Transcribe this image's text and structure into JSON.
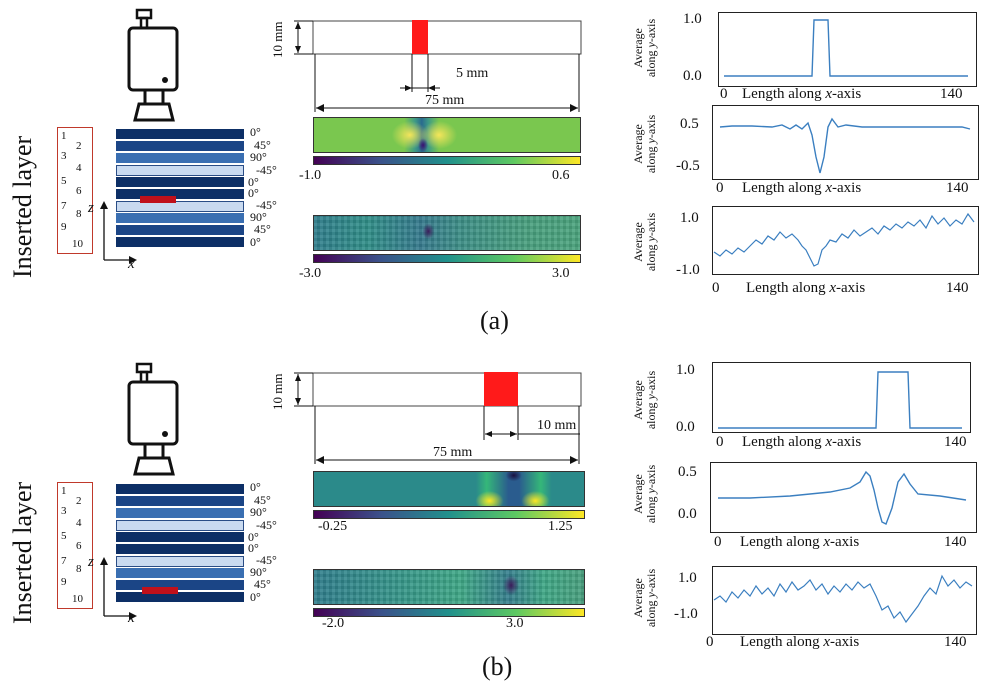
{
  "panels": [
    {
      "label": "(a)",
      "side_title": "Inserted layer",
      "layer_numbers": [
        "1",
        "2",
        "3",
        "4",
        "5",
        "6",
        "7",
        "8",
        "9",
        "10"
      ],
      "angles": [
        "0°",
        "45°",
        "90°",
        "-45°",
        "0°",
        "0°",
        "-45°",
        "90°",
        "45°",
        "0°"
      ],
      "insert_layer_index": 6,
      "axis_z": "z",
      "axis_x": "x",
      "dim_height": "10 mm",
      "dim_width": "5 mm",
      "dim_length": "75 mm",
      "colorbar1": {
        "min": "-1.0",
        "max": "0.6"
      },
      "colorbar2": {
        "min": "-3.0",
        "max": "3.0"
      },
      "plots": [
        {
          "ylabel": "Average along y-axis",
          "xlabel": "Length along x-axis",
          "yticks": [
            "1.0",
            "0.0"
          ],
          "xticks": [
            "0",
            "140"
          ]
        },
        {
          "ylabel": "Average along y-axis",
          "xlabel": "Length along x-axis",
          "yticks": [
            "0.5",
            "-0.5"
          ],
          "xticks": [
            "0",
            "140"
          ]
        },
        {
          "ylabel": "Average along y-axis",
          "xlabel": "Length along x-axis",
          "yticks": [
            "1.0",
            "-1.0"
          ],
          "xticks": [
            "0",
            "140"
          ]
        }
      ]
    },
    {
      "label": "(b)",
      "side_title": "Inserted layer",
      "layer_numbers": [
        "1",
        "2",
        "3",
        "4",
        "5",
        "6",
        "7",
        "8",
        "9",
        "10"
      ],
      "angles": [
        "0°",
        "45°",
        "90°",
        "-45°",
        "0°",
        "0°",
        "-45°",
        "90°",
        "45°",
        "0°"
      ],
      "insert_layer_index": 9,
      "axis_z": "z",
      "axis_x": "x",
      "dim_height": "10 mm",
      "dim_width": "10 mm",
      "dim_length": "75 mm",
      "colorbar1": {
        "min": "-0.25",
        "max": "1.25"
      },
      "colorbar2": {
        "min": "-2.0",
        "max": "3.0"
      },
      "plots": [
        {
          "ylabel": "Average along y-axis",
          "xlabel": "Length along x-axis",
          "yticks": [
            "1.0",
            "0.0"
          ],
          "xticks": [
            "0",
            "140"
          ]
        },
        {
          "ylabel": "Average along y-axis",
          "xlabel": "Length along x-axis",
          "yticks": [
            "0.5",
            "0.0"
          ],
          "xticks": [
            "0",
            "140"
          ]
        },
        {
          "ylabel": "Average along y-axis",
          "xlabel": "Length along x-axis",
          "yticks": [
            "1.0",
            "-1.0"
          ],
          "xticks": [
            "0",
            "140"
          ]
        }
      ]
    }
  ]
}
